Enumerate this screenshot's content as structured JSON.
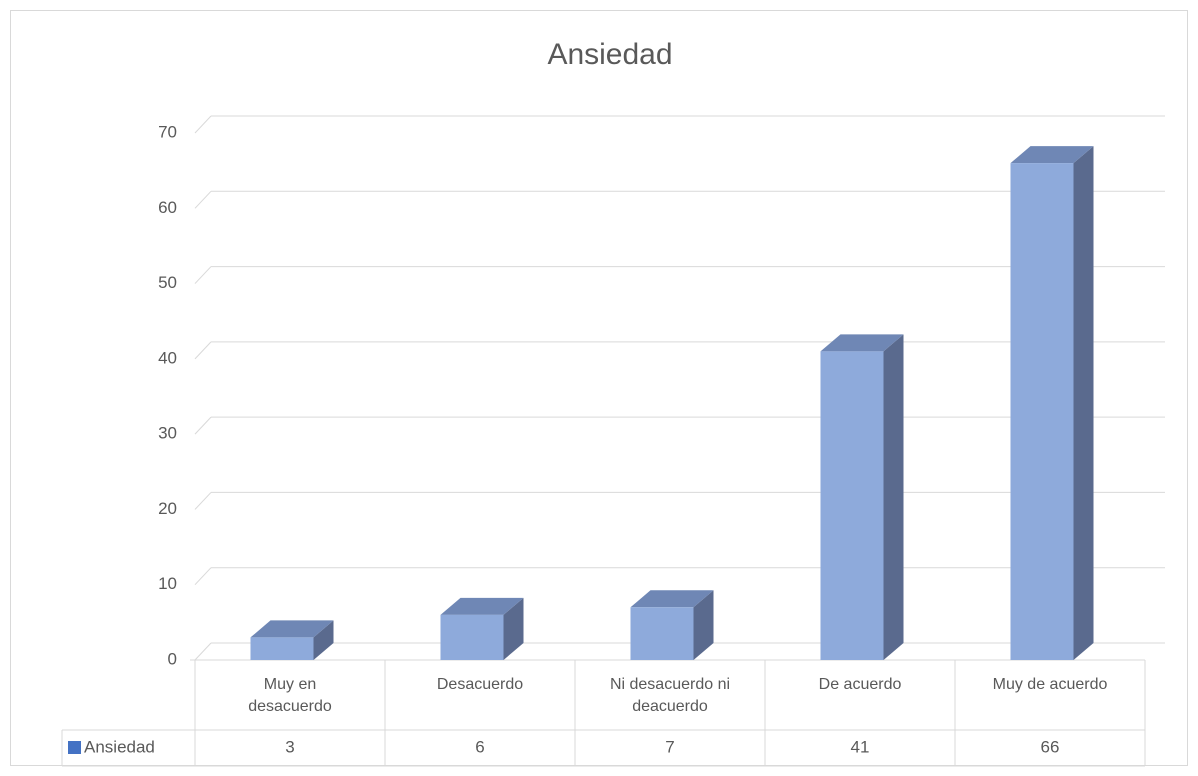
{
  "chart_data": {
    "type": "bar3d",
    "title": "Ansiedad",
    "categories": [
      "Muy en desacuerdo",
      "Desacuerdo",
      "Ni desacuerdo ni deacuerdo",
      "De acuerdo",
      "Muy de acuerdo"
    ],
    "series": [
      {
        "name": "Ansiedad",
        "color": "#8eaadb",
        "values": [
          3,
          6,
          7,
          41,
          66
        ]
      }
    ],
    "ylim": [
      0,
      70
    ],
    "yticks": [
      0,
      10,
      20,
      30,
      40,
      50,
      60,
      70
    ],
    "grid": true,
    "data_table": true
  }
}
